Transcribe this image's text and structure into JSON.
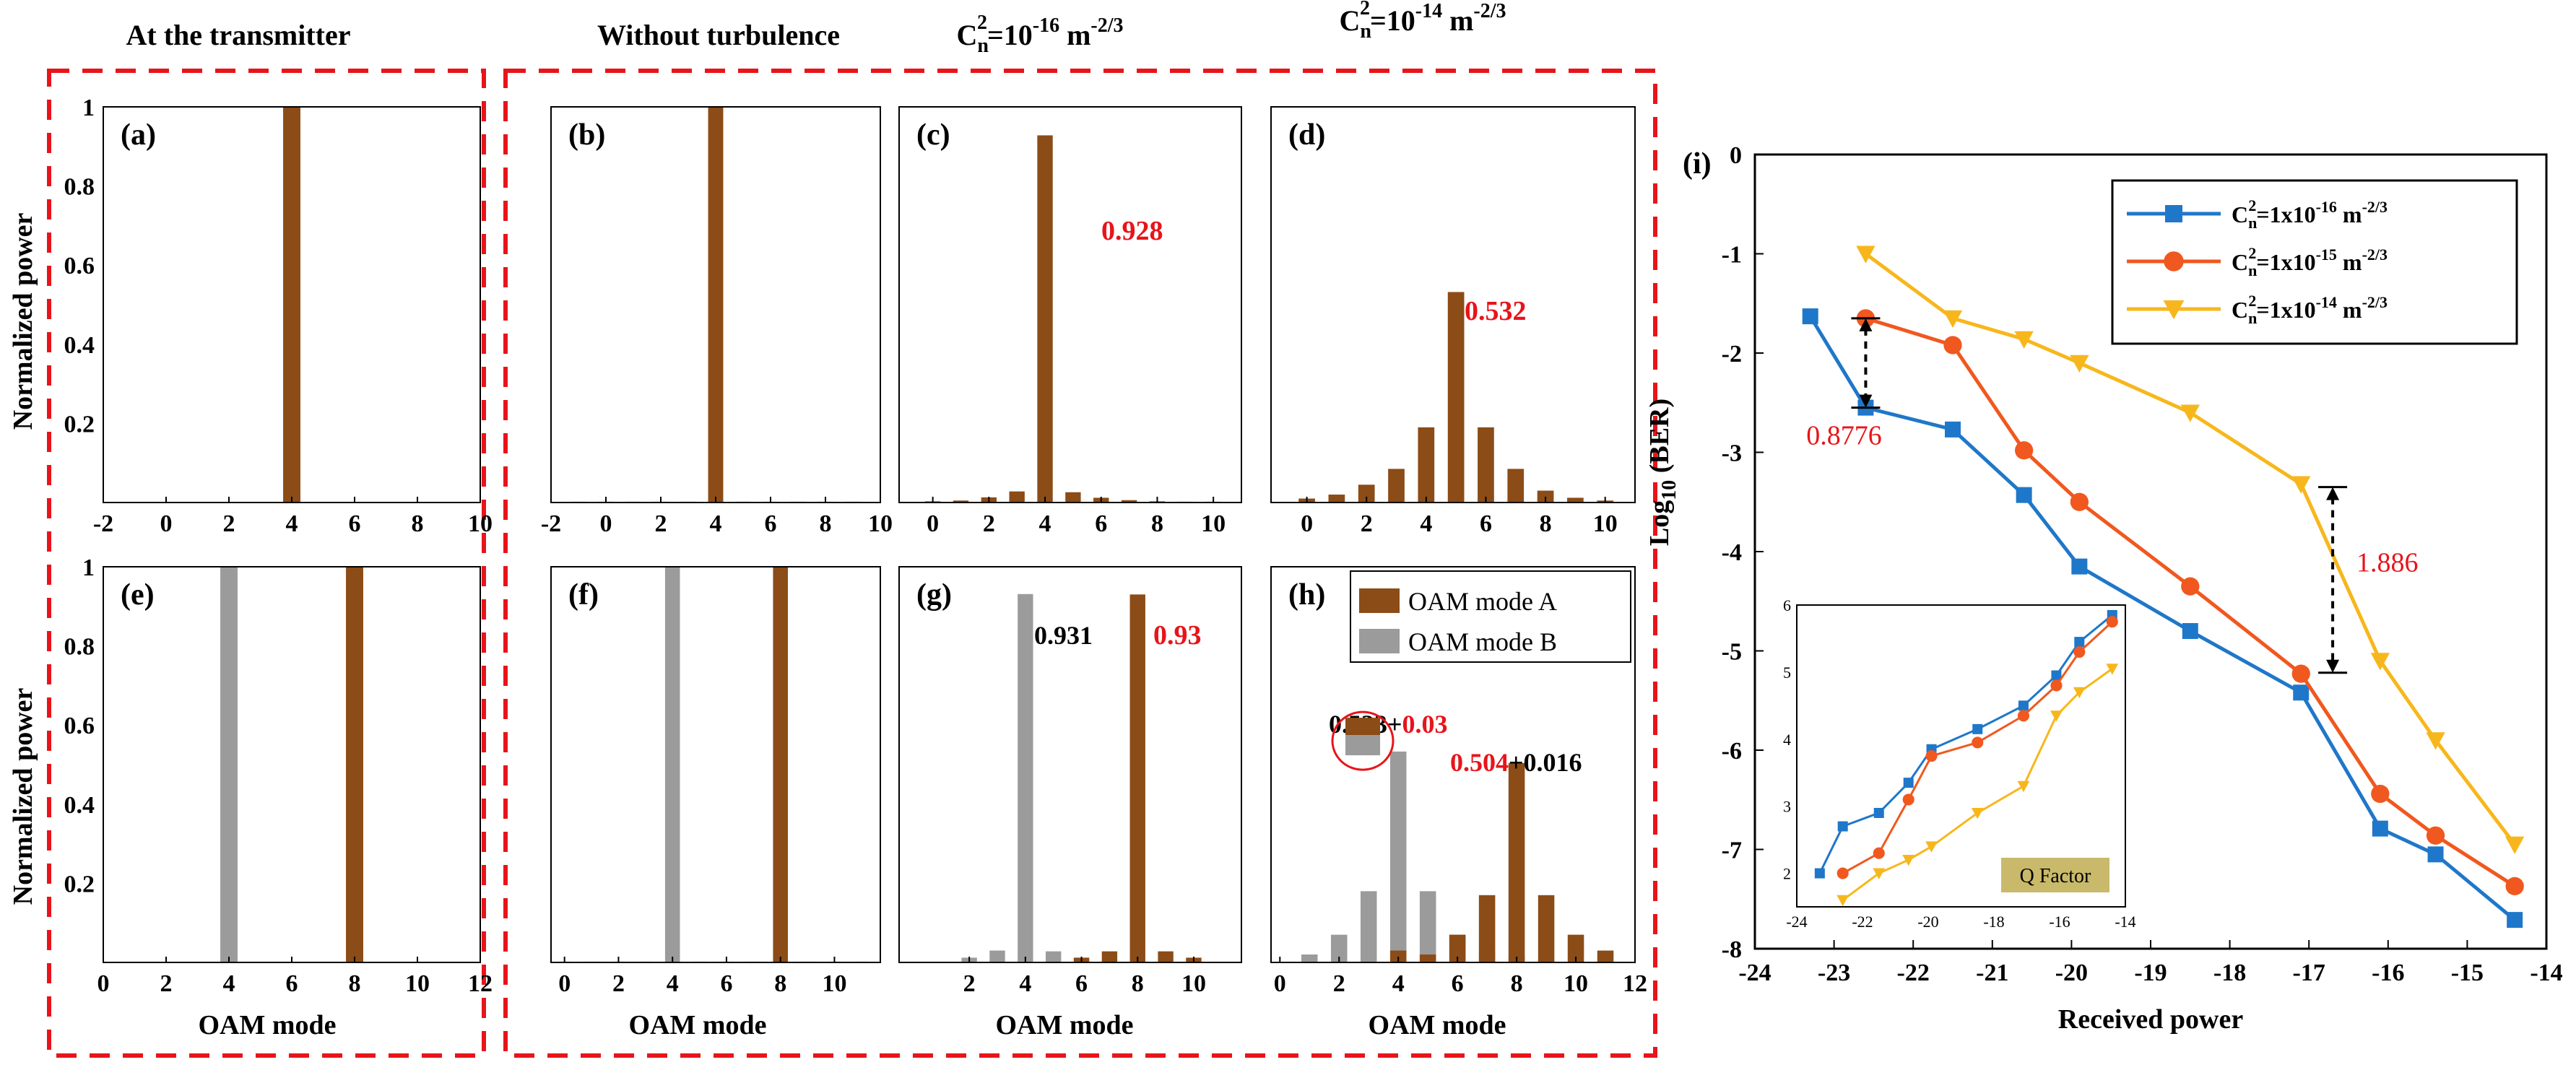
{
  "figure": {
    "column_headers": [
      "At the transmitter",
      "Without turbulence",
      "C",
      "C"
    ],
    "cn_headers": [
      {
        "base": "C",
        "sub": "n",
        "sup2": "2",
        "eq": "=10",
        "exp": "-16",
        "unit": " m",
        "unit_exp": "-2/3"
      },
      {
        "base": "C",
        "sub": "n",
        "sup2": "2",
        "eq": "=10",
        "exp": "-14",
        "unit": " m",
        "unit_exp": "-2/3"
      }
    ],
    "ylabel": "Normalized power",
    "xlabel": "OAM mode",
    "panel_i_tag": "(i)",
    "colors": {
      "mode_a": "#8b4c17",
      "mode_b": "#9b9b9b",
      "red": "#e8141a",
      "dash": "#e8141a"
    }
  },
  "chart_data": [
    {
      "id": "a",
      "tag": "(a)",
      "type": "bar",
      "row": 0,
      "xticks": [
        "-2",
        "0",
        "2",
        "4",
        "6",
        "8",
        "10"
      ],
      "xlim": [
        -2,
        10
      ],
      "ylim": [
        0,
        1
      ],
      "yticks": [
        "0.2",
        "0.4",
        "0.6",
        "0.8",
        "1"
      ],
      "series": [
        {
          "name": "OAM mode A",
          "x": [
            4
          ],
          "values": [
            1.0
          ]
        }
      ],
      "annotations": []
    },
    {
      "id": "b",
      "tag": "(b)",
      "type": "bar",
      "row": 0,
      "xticks": [
        "-2",
        "0",
        "2",
        "4",
        "6",
        "8",
        "10"
      ],
      "xlim": [
        -2,
        10
      ],
      "ylim": [
        0,
        1
      ],
      "series": [
        {
          "name": "OAM mode A",
          "x": [
            -1,
            0,
            1,
            2,
            3,
            4,
            5,
            6,
            7,
            8,
            9
          ],
          "values": [
            0.002,
            0.002,
            0.002,
            0.002,
            0.002,
            1.0,
            0.002,
            0.002,
            0.002,
            0.002,
            0.002
          ]
        }
      ],
      "annotations": []
    },
    {
      "id": "c",
      "tag": "(c)",
      "type": "bar",
      "row": 0,
      "xticks": [
        "0",
        "2",
        "4",
        "6",
        "8",
        "10"
      ],
      "xlim": [
        -1.2,
        11
      ],
      "ylim": [
        0,
        1
      ],
      "series": [
        {
          "name": "OAM mode A",
          "x": [
            0,
            1,
            2,
            3,
            4,
            5,
            6,
            7,
            8,
            9,
            10
          ],
          "values": [
            0.003,
            0.005,
            0.013,
            0.028,
            0.928,
            0.026,
            0.012,
            0.006,
            0.003,
            0.002,
            0.002
          ]
        }
      ],
      "annotations": [
        {
          "text": "0.928",
          "color": "red"
        }
      ]
    },
    {
      "id": "d",
      "tag": "(d)",
      "type": "bar",
      "row": 0,
      "xticks": [
        "0",
        "2",
        "4",
        "6",
        "8",
        "10"
      ],
      "xlim": [
        -1.2,
        11
      ],
      "ylim": [
        0,
        1
      ],
      "series": [
        {
          "name": "OAM mode A",
          "x": [
            0,
            1,
            2,
            3,
            4,
            5,
            6,
            7,
            8,
            9,
            10
          ],
          "values": [
            0.01,
            0.02,
            0.045,
            0.085,
            0.19,
            0.532,
            0.19,
            0.085,
            0.03,
            0.012,
            0.005
          ]
        }
      ],
      "annotations": [
        {
          "text": "0.532",
          "color": "red"
        }
      ]
    },
    {
      "id": "e",
      "tag": "(e)",
      "type": "bar",
      "row": 1,
      "xticks": [
        "0",
        "2",
        "4",
        "6",
        "8",
        "10",
        "12"
      ],
      "xlim": [
        0,
        12
      ],
      "ylim": [
        0,
        1
      ],
      "yticks": [
        "0.2",
        "0.4",
        "0.6",
        "0.8",
        "1"
      ],
      "series": [
        {
          "name": "OAM mode B",
          "x": [
            4
          ],
          "values": [
            1.0
          ]
        },
        {
          "name": "OAM mode A",
          "x": [
            8
          ],
          "values": [
            1.0
          ]
        }
      ],
      "annotations": []
    },
    {
      "id": "f",
      "tag": "(f)",
      "type": "bar",
      "row": 1,
      "xticks": [
        "0",
        "2",
        "4",
        "6",
        "8",
        "10"
      ],
      "xlim": [
        -0.5,
        11.7
      ],
      "ylim": [
        0,
        1
      ],
      "series": [
        {
          "name": "OAM mode B",
          "x": [
            0,
            1,
            2,
            3,
            4,
            5,
            6,
            7,
            8,
            9,
            10,
            11
          ],
          "values": [
            0.002,
            0.002,
            0.002,
            0.002,
            1.0,
            0.002,
            0.002,
            0.002,
            0.002,
            0.002,
            0.002,
            0.002
          ]
        },
        {
          "name": "OAM mode A",
          "x": [
            8
          ],
          "values": [
            1.0
          ]
        }
      ],
      "annotations": []
    },
    {
      "id": "g",
      "tag": "(g)",
      "type": "bar",
      "row": 1,
      "xticks": [
        "2",
        "4",
        "6",
        "8",
        "10"
      ],
      "xlim": [
        -0.5,
        11.7
      ],
      "ylim": [
        0,
        1
      ],
      "series": [
        {
          "name": "OAM mode B",
          "x": [
            2,
            3,
            4,
            5,
            6,
            7,
            8
          ],
          "values": [
            0.012,
            0.03,
            0.931,
            0.028,
            0.012,
            0.006,
            0.004
          ]
        },
        {
          "name": "OAM mode A",
          "x": [
            6,
            7,
            8,
            9,
            10
          ],
          "values": [
            0.012,
            0.028,
            0.93,
            0.028,
            0.012
          ]
        }
      ],
      "annotations": [
        {
          "text": "0.931",
          "color": "black"
        },
        {
          "text": "0.93",
          "color": "red"
        }
      ]
    },
    {
      "id": "h",
      "tag": "(h)",
      "type": "bar",
      "row": 1,
      "xticks": [
        "0",
        "2",
        "4",
        "6",
        "8",
        "10",
        "12"
      ],
      "xlim": [
        -0.3,
        12
      ],
      "ylim": [
        0,
        1
      ],
      "series": [
        {
          "name": "OAM mode B",
          "x": [
            1,
            2,
            3,
            4,
            5,
            6,
            7,
            8,
            9,
            10,
            11
          ],
          "values": [
            0.02,
            0.07,
            0.18,
            0.533,
            0.18,
            0.07,
            0.03,
            0.016,
            0.005,
            0.002,
            0.002
          ]
        },
        {
          "name": "OAM mode A",
          "x": [
            3,
            4,
            5,
            6,
            7,
            8,
            9,
            10,
            11
          ],
          "values": [
            0.0,
            0.03,
            0.02,
            0.07,
            0.17,
            0.504,
            0.17,
            0.07,
            0.03
          ]
        }
      ],
      "legend": [
        "OAM mode A",
        "OAM mode B"
      ],
      "annotations": [
        {
          "parts": [
            {
              "text": "0.533+",
              "color": "black"
            },
            {
              "text": "0.03",
              "color": "red"
            }
          ]
        },
        {
          "parts": [
            {
              "text": "0.504",
              "color": "red"
            },
            {
              "text": "+0.016",
              "color": "black"
            }
          ]
        }
      ]
    },
    {
      "id": "i",
      "type": "line",
      "xlabel": "Received power",
      "ylabel": "Log",
      "ylabel_sub": "10",
      "ylabel_rest": " (BER)",
      "xlim": [
        -24,
        -14
      ],
      "ylim": [
        -8,
        0
      ],
      "xticks": [
        "-24",
        "-23",
        "-22",
        "-21",
        "-20",
        "-19",
        "-18",
        "-17",
        "-16",
        "-15",
        "-14"
      ],
      "yticks": [
        "0",
        "-1",
        "-2",
        "-3",
        "-4",
        "-5",
        "-6",
        "-7",
        "-8"
      ],
      "series": [
        {
          "name": "C²n=1x10⁻¹⁶ m⁻²/³",
          "legend": {
            "pre": "=1x10",
            "exp": "-16",
            "unit": " m",
            "unit_exp": "-2/3"
          },
          "color": "#1f77c9",
          "marker": "square",
          "x": [
            -23.3,
            -22.6,
            -21.5,
            -20.6,
            -19.9,
            -18.5,
            -17.1,
            -16.1,
            -15.4,
            -14.4
          ],
          "y": [
            -1.63,
            -2.55,
            -2.77,
            -3.43,
            -4.15,
            -4.8,
            -5.42,
            -6.79,
            -7.05,
            -7.71
          ]
        },
        {
          "name": "C²n=1x10⁻¹⁵ m⁻²/³",
          "legend": {
            "pre": "=1x10",
            "exp": "-15",
            "unit": " m",
            "unit_exp": "-2/3"
          },
          "color": "#f0581f",
          "marker": "circle",
          "x": [
            -22.6,
            -21.5,
            -20.6,
            -19.9,
            -18.5,
            -17.1,
            -16.1,
            -15.4,
            -14.4
          ],
          "y": [
            -1.65,
            -1.92,
            -2.98,
            -3.5,
            -4.35,
            -5.23,
            -6.44,
            -6.86,
            -7.37
          ]
        },
        {
          "name": "C²n=1x10⁻¹⁴ m⁻²/³",
          "legend": {
            "pre": "=1x10",
            "exp": "-14",
            "unit": " m",
            "unit_exp": "-2/3"
          },
          "color": "#f7b71c",
          "marker": "triangle-down",
          "x": [
            -22.6,
            -21.5,
            -20.6,
            -19.9,
            -18.5,
            -17.1,
            -16.1,
            -15.4,
            -14.4
          ],
          "y": [
            -1.0,
            -1.65,
            -1.86,
            -2.1,
            -2.6,
            -3.32,
            -5.1,
            -5.9,
            -6.95
          ]
        }
      ],
      "annotations": [
        {
          "text": "0.8776",
          "color": "red"
        },
        {
          "text": "1.886",
          "color": "red"
        }
      ],
      "inset": {
        "label": "Q Factor",
        "xlim": [
          -24,
          -14
        ],
        "ylim": [
          1.5,
          6
        ],
        "xticks": [
          "-24",
          "-22",
          "-20",
          "-18",
          "-16",
          "-14"
        ],
        "yticks": [
          "2",
          "3",
          "4",
          "5",
          "6"
        ],
        "series": [
          {
            "color": "#1f77c9",
            "marker": "square",
            "x": [
              -23.3,
              -22.6,
              -21.5,
              -20.6,
              -19.9,
              -18.5,
              -17.1,
              -16.1,
              -15.4,
              -14.4
            ],
            "y": [
              2.0,
              2.7,
              2.9,
              3.35,
              3.85,
              4.15,
              4.5,
              4.95,
              5.45,
              5.85
            ]
          },
          {
            "color": "#f0581f",
            "marker": "circle",
            "x": [
              -22.6,
              -21.5,
              -20.6,
              -19.9,
              -18.5,
              -17.1,
              -16.1,
              -15.4,
              -14.4
            ],
            "y": [
              2.0,
              2.3,
              3.1,
              3.75,
              3.95,
              4.35,
              4.8,
              5.3,
              5.75
            ]
          },
          {
            "color": "#f7b71c",
            "marker": "triangle-down",
            "x": [
              -22.6,
              -21.5,
              -20.6,
              -19.9,
              -18.5,
              -17.1,
              -16.1,
              -15.4,
              -14.4
            ],
            "y": [
              1.6,
              2.0,
              2.2,
              2.4,
              2.9,
              3.3,
              4.35,
              4.7,
              5.05
            ]
          }
        ]
      }
    }
  ]
}
